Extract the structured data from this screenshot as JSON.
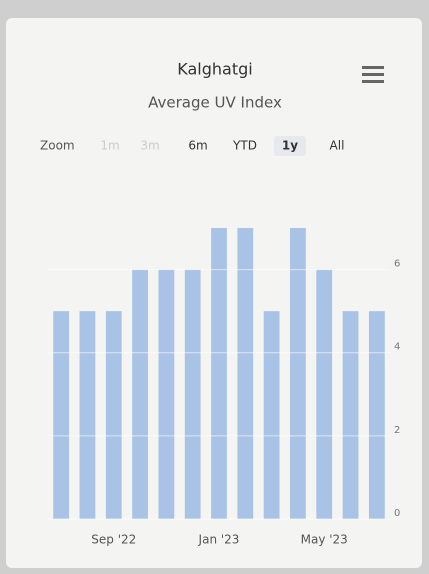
{
  "chart_data": {
    "type": "bar",
    "title": "Kalghatgi",
    "subtitle": "Average UV Index",
    "range_selector": {
      "label": "Zoom",
      "buttons": [
        {
          "text": "1m",
          "enabled": false
        },
        {
          "text": "3m",
          "enabled": false
        },
        {
          "text": "6m",
          "enabled": true
        },
        {
          "text": "YTD",
          "enabled": true
        },
        {
          "text": "1y",
          "enabled": true,
          "selected": true
        },
        {
          "text": "All",
          "enabled": true
        }
      ]
    },
    "categories": [
      null,
      null,
      "Sep '22",
      null,
      null,
      null,
      "Jan '23",
      null,
      null,
      null,
      "May '23",
      null,
      null
    ],
    "values": [
      5,
      5,
      5,
      6,
      6,
      6,
      7,
      7,
      5,
      7,
      6,
      5,
      5
    ],
    "color": "#a9c3e6",
    "ylim": [
      0,
      7
    ],
    "yticks": [
      0,
      2,
      4,
      6
    ],
    "grid": true,
    "y_axis_side": "right"
  }
}
